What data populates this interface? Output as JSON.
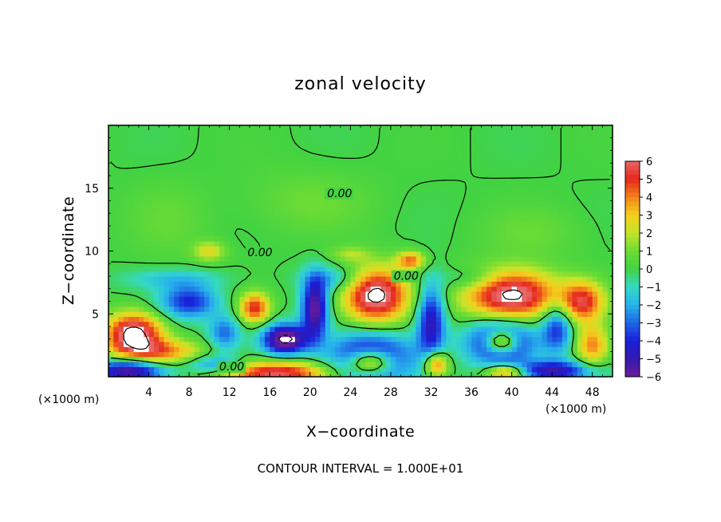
{
  "chart_data": {
    "type": "heatmap",
    "title": "zonal velocity",
    "xlabel": "X−coordinate",
    "ylabel": "Z−coordinate",
    "x_unit_left": "(×1000 m)",
    "x_unit_right": "(×1000 m)",
    "xlim": [
      0,
      50
    ],
    "ylim": [
      0,
      20
    ],
    "x_ticks": [
      4,
      8,
      12,
      16,
      20,
      24,
      28,
      32,
      36,
      40,
      44,
      48
    ],
    "x_tick_labels": [
      "4",
      "8",
      "12",
      "16",
      "20",
      "24",
      "28",
      "32",
      "36",
      "40",
      "44",
      "48"
    ],
    "y_ticks": [
      5,
      10,
      15
    ],
    "y_tick_labels": [
      "5",
      "10",
      "15"
    ],
    "colorbar": {
      "min": -6,
      "max": 6,
      "tick_labels": [
        "6",
        "5",
        "4",
        "3",
        "2",
        "1",
        "0",
        "−1",
        "−2",
        "−3",
        "−4",
        "−5",
        "−6"
      ],
      "colors": [
        "#7a1fa0",
        "#3a1fbf",
        "#1f2ad9",
        "#1f6ee6",
        "#27b8ea",
        "#3de0c8",
        "#4ed64e",
        "#7ee03a",
        "#c8e62c",
        "#f2d11f",
        "#f28a1f",
        "#e8301c",
        "#e86a6a"
      ]
    },
    "contour_labels": [
      "0.00",
      "0.00",
      "0.00",
      "0.00"
    ],
    "footer": "CONTOUR INTERVAL = 1.000E+01",
    "blobs": [
      {
        "x": 26.5,
        "z": 6.5,
        "rx": 3.2,
        "rz": 2.2,
        "v": 7
      },
      {
        "x": 30.0,
        "z": 9.3,
        "rx": 1.4,
        "rz": 0.7,
        "v": 4
      },
      {
        "x": 40.0,
        "z": 6.5,
        "rx": 4.6,
        "rz": 2.0,
        "v": 7
      },
      {
        "x": 47.0,
        "z": 6.0,
        "rx": 2.2,
        "rz": 1.6,
        "v": 5
      },
      {
        "x": 14.5,
        "z": 5.5,
        "rx": 1.5,
        "rz": 1.2,
        "v": 5
      },
      {
        "x": 17.5,
        "z": 3.0,
        "rx": 2.2,
        "rz": 1.2,
        "v": -7
      },
      {
        "x": 20.5,
        "z": 5.5,
        "rx": 1.3,
        "rz": 2.4,
        "v": -6
      },
      {
        "x": 2.5,
        "z": 3.5,
        "rx": 2.8,
        "rz": 1.6,
        "v": 7
      },
      {
        "x": 5.0,
        "z": 2.0,
        "rx": 4.5,
        "rz": 1.0,
        "v": 4
      },
      {
        "x": 2.0,
        "z": 0.5,
        "rx": 3.5,
        "rz": 1.0,
        "v": -6
      },
      {
        "x": 8.0,
        "z": 6.0,
        "rx": 2.8,
        "rz": 1.3,
        "v": -4
      },
      {
        "x": 11.5,
        "z": 3.5,
        "rx": 1.6,
        "rz": 1.4,
        "v": -3
      },
      {
        "x": 16.5,
        "z": 0.3,
        "rx": 5.5,
        "rz": 1.0,
        "v": 6
      },
      {
        "x": 10.5,
        "z": 1.0,
        "rx": 3.0,
        "rz": 0.8,
        "v": -3
      },
      {
        "x": 26.0,
        "z": 1.5,
        "rx": 4.0,
        "rz": 2.0,
        "v": -6
      },
      {
        "x": 26.0,
        "z": 1.2,
        "rx": 2.2,
        "rz": 1.0,
        "v": 7
      },
      {
        "x": 32.0,
        "z": 4.5,
        "rx": 1.4,
        "rz": 3.0,
        "v": -5
      },
      {
        "x": 32.5,
        "z": 1.0,
        "rx": 1.2,
        "rz": 1.0,
        "v": 5
      },
      {
        "x": 39.0,
        "z": 2.8,
        "rx": 3.3,
        "rz": 1.8,
        "v": -6
      },
      {
        "x": 39.0,
        "z": 2.8,
        "rx": 1.6,
        "rz": 0.9,
        "v": 7
      },
      {
        "x": 44.5,
        "z": 4.0,
        "rx": 1.5,
        "rz": 2.0,
        "v": -4
      },
      {
        "x": 48.0,
        "z": 2.5,
        "rx": 1.6,
        "rz": 1.6,
        "v": 4
      },
      {
        "x": 44.0,
        "z": 0.5,
        "rx": 4.0,
        "rz": 0.8,
        "v": -5
      },
      {
        "x": 39.5,
        "z": 0.4,
        "rx": 2.0,
        "rz": 0.6,
        "v": 5
      },
      {
        "x": 36.0,
        "z": 7.8,
        "rx": 3.0,
        "rz": 0.9,
        "v": -1.5
      },
      {
        "x": 22.5,
        "z": 7.8,
        "rx": 3.0,
        "rz": 1.0,
        "v": -2
      },
      {
        "x": 6.5,
        "z": 7.8,
        "rx": 5.0,
        "rz": 0.8,
        "v": -1.5
      },
      {
        "x": 10.0,
        "z": 10.0,
        "rx": 1.6,
        "rz": 0.8,
        "v": 2.5
      },
      {
        "x": 24.0,
        "z": 9.8,
        "rx": 2.0,
        "rz": 0.6,
        "v": 1.5
      },
      {
        "x": 20.0,
        "z": 14.0,
        "rx": 6.0,
        "rz": 2.5,
        "v": 0.9
      },
      {
        "x": 42.0,
        "z": 11.5,
        "rx": 5.0,
        "rz": 2.0,
        "v": 0.8
      },
      {
        "x": 6.0,
        "z": 12.5,
        "rx": 4.0,
        "rz": 3.0,
        "v": 0.7
      }
    ]
  }
}
